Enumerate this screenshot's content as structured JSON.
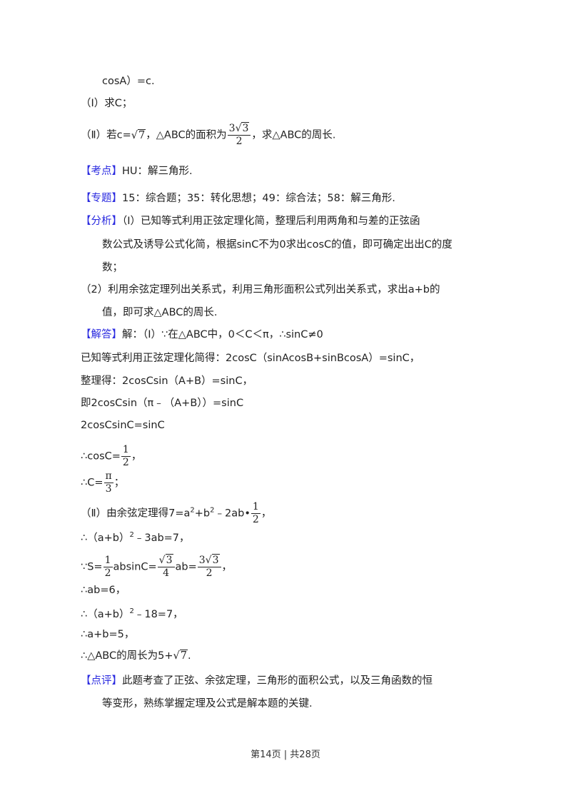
{
  "question": {
    "line0": "cosA）=c.",
    "part1": "（Ⅰ）求C；",
    "part2_pre": "（Ⅱ）若c=",
    "part2_sqrt": "7",
    "part2_mid": "，△ABC的面积为",
    "part2_frac_num_coef": "3",
    "part2_frac_num_sqrt": "3",
    "part2_frac_den": "2",
    "part2_post": "，求△ABC的周长."
  },
  "kaodian": {
    "label": "【考点】",
    "text": "HU：解三角形."
  },
  "zhuanti": {
    "label": "【专题】",
    "text": "15：综合题；35：转化思想；49：综合法；58：解三角形."
  },
  "fenxi": {
    "label": "【分析】",
    "l1": "（Ⅰ）已知等式利用正弦定理化简，整理后利用两角和与差的正弦函",
    "l2": "数公式及诱导公式化简，根据sinC不为0求出cosC的值，即可确定出出C的度",
    "l3": "数；",
    "l4": "（2）利用余弦定理列出关系式，利用三角形面积公式列出关系式，求出a+b的",
    "l5": "值，即可求△ABC的周长."
  },
  "jieda": {
    "label": "【解答】",
    "l1": "解：（Ⅰ）∵在△ABC中，0＜C＜π，∴sinC≠0",
    "l2": "已知等式利用正弦定理化简得：2cosC（sinAcosB+sinBcosA）=sinC，",
    "l3": "整理得：2cosCsin（A+B）=sinC，",
    "l4": "即2cosCsin（π﹣（A+B））=sinC",
    "l5": "2cosCsinC=sinC",
    "l6_pre": "∴cosC=",
    "l6_num": "1",
    "l6_den": "2",
    "l6_post": "，",
    "l7_pre": "∴C=",
    "l7_num": "π",
    "l7_den": "3",
    "l7_post": "；",
    "l8_pre": "（Ⅱ）由余弦定理得7=a",
    "l8_sup1": "2",
    "l8_mid": "+b",
    "l8_sup2": "2",
    "l8_mid2": "﹣2ab•",
    "l8_num": "1",
    "l8_den": "2",
    "l8_post": "，",
    "l9_pre": "∴（a+b）",
    "l9_sup": "2",
    "l9_post": "﹣3ab=7，",
    "l10_pre": "∵S=",
    "l10_f1n": "1",
    "l10_f1d": "2",
    "l10_mid": "absinC=",
    "l10_f2n": "3",
    "l10_f2d": "4",
    "l10_mid2": "ab=",
    "l10_f3c": "3",
    "l10_f3n": "3",
    "l10_f3d": "2",
    "l10_post": "，",
    "l11": "∴ab=6，",
    "l12_pre": "∴（a+b）",
    "l12_sup": "2",
    "l12_post": "﹣18=7，",
    "l13": "∴a+b=5，",
    "l14_pre": "∴△ABC的周长为5+",
    "l14_sqrt": "7",
    "l14_post": "."
  },
  "dianping": {
    "label": "【点评】",
    "l1": "此题考查了正弦、余弦定理，三角形的面积公式，以及三角函数的恒",
    "l2": "等变形，熟练掌握定理及公式是解本题的关键."
  },
  "footer": "第14页 | 共28页",
  "colors": {
    "label": "#2a2ae0",
    "text": "#222222"
  }
}
